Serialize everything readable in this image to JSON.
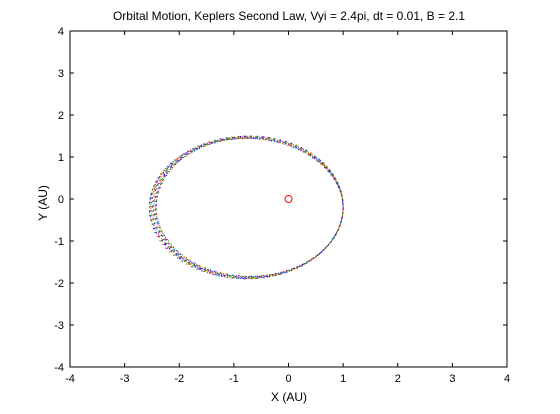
{
  "chart_data": {
    "type": "scatter",
    "title": "Orbital Motion, Keplers Second Law, Vyi = 2.4pi, dt = 0.01, B = 2.1",
    "xlabel": "X (AU)",
    "ylabel": "Y (AU)",
    "xlim": [
      -4,
      4
    ],
    "ylim": [
      -4,
      4
    ],
    "xticks": [
      "-4",
      "-3",
      "-2",
      "-1",
      "0",
      "1",
      "2",
      "3",
      "4"
    ],
    "yticks": [
      "-4",
      "-3",
      "-2",
      "-1",
      "0",
      "1",
      "2",
      "3",
      "4"
    ],
    "grid": false,
    "legend": "none",
    "series": [
      {
        "marker": "o",
        "color": "#ff0000",
        "x": [
          0
        ],
        "y": [
          0
        ]
      },
      {
        "marker": "dot",
        "colors": [
          "#0000ff",
          "#008000",
          "#ff0000",
          "#00bfbf",
          "#bf00bf",
          "#bfbf00",
          "#404040"
        ],
        "orbit": {
          "perihelion_x": 1.0,
          "aphelion_x_range": [
            -2.55,
            -2.42
          ],
          "y_max": 1.47,
          "y_min": -1.87,
          "count": 2000
        }
      }
    ]
  }
}
